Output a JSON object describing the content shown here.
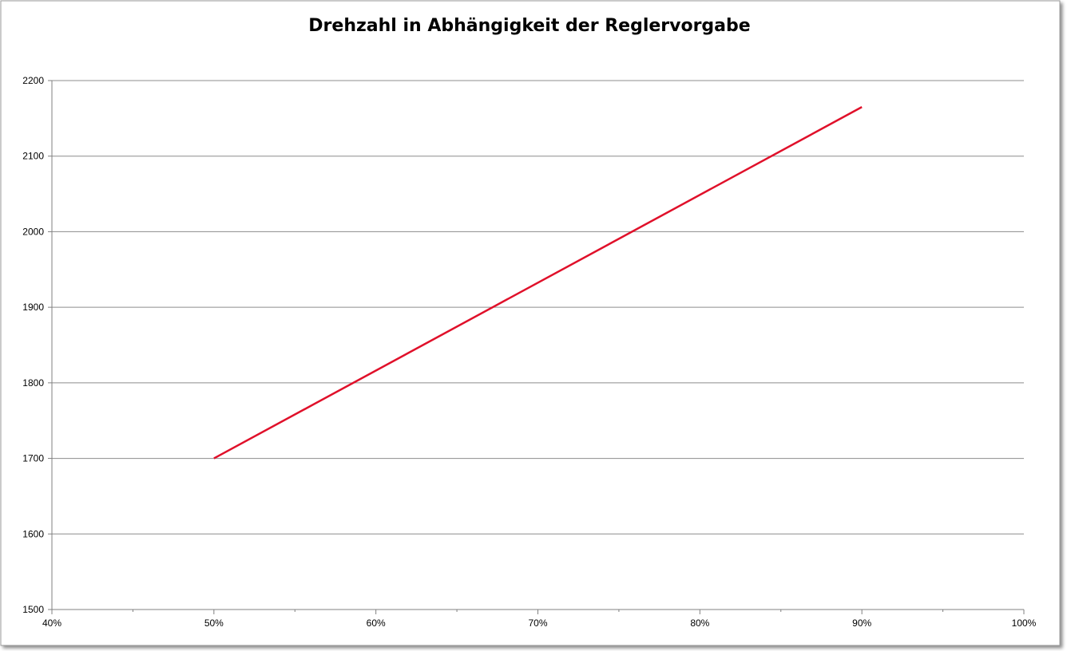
{
  "chart_data": {
    "type": "line",
    "title": "Drehzahl in Abhängigkeit der Reglervorgabe",
    "xlabel": "",
    "ylabel": "",
    "x_ticks": [
      "40%",
      "50%",
      "60%",
      "70%",
      "80%",
      "90%",
      "100%"
    ],
    "y_ticks": [
      "1500",
      "1600",
      "1700",
      "1800",
      "1900",
      "2000",
      "2100",
      "2200"
    ],
    "xlim": [
      40,
      100
    ],
    "ylim": [
      1500,
      2200
    ],
    "grid": "horizontal",
    "legend": "none",
    "series": [
      {
        "color": "#e0102a",
        "x": [
          50,
          90
        ],
        "y": [
          1700,
          2165
        ]
      }
    ]
  }
}
